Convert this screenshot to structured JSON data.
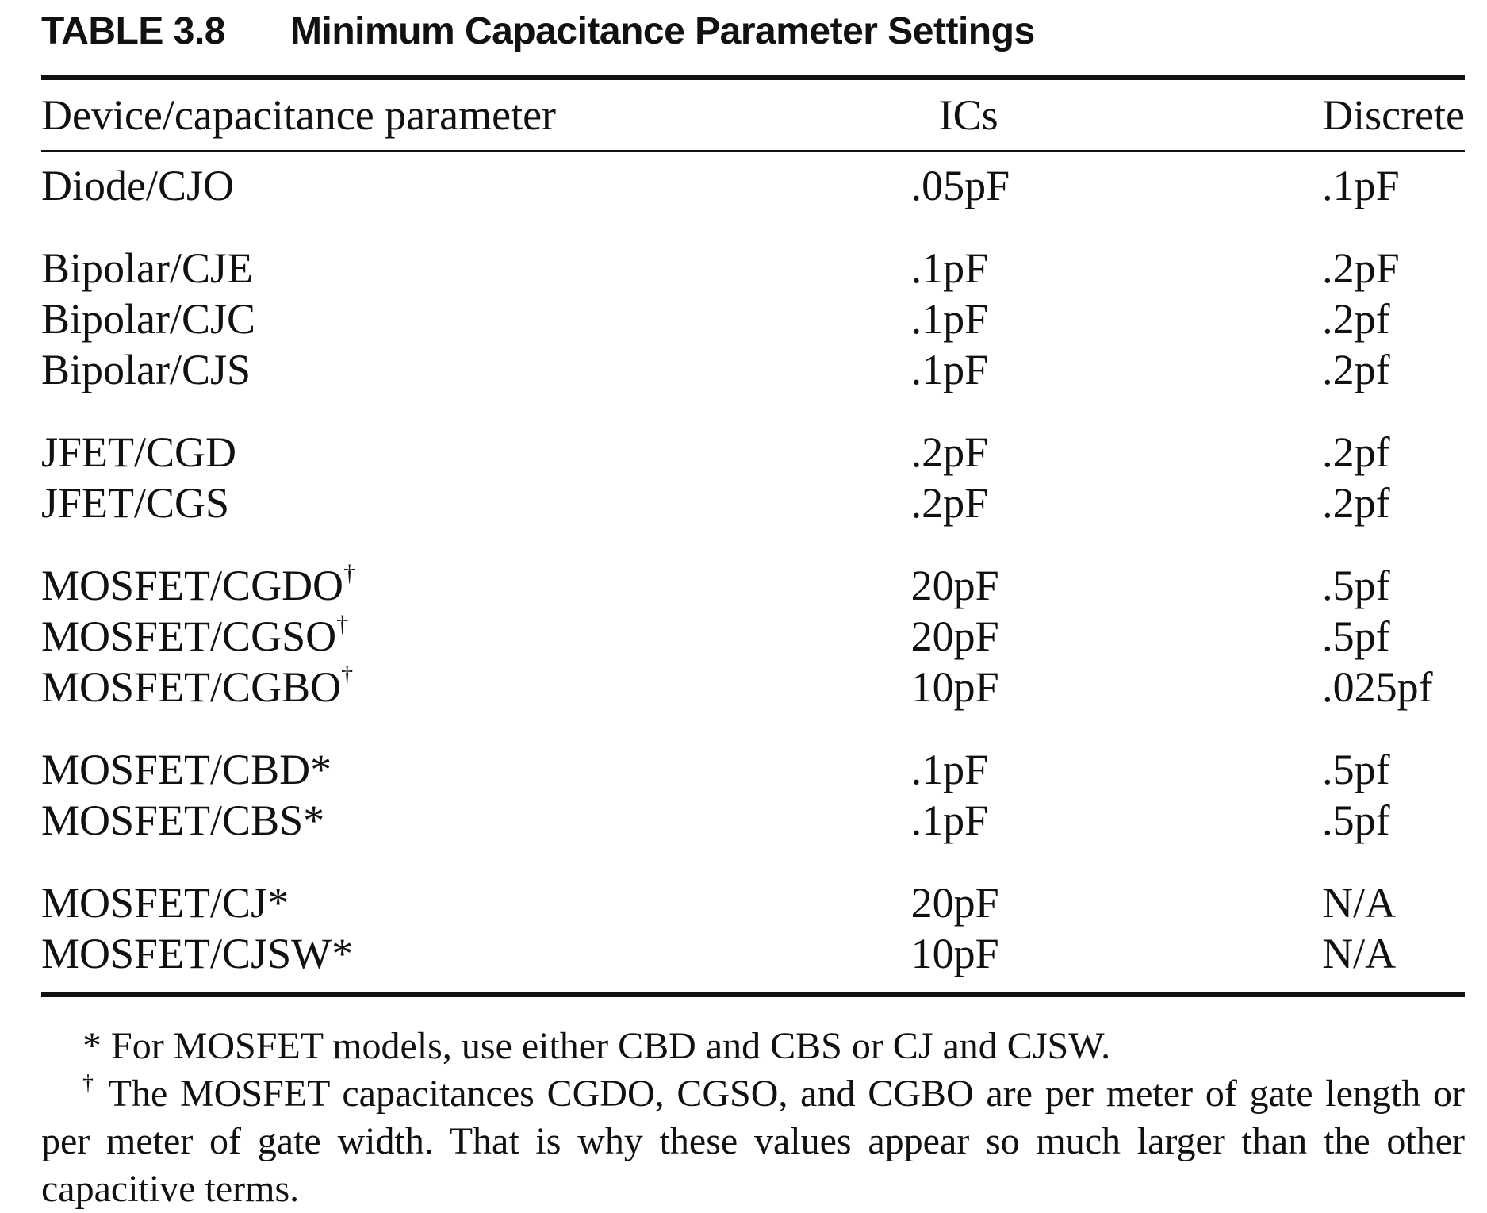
{
  "table": {
    "number": "TABLE 3.8",
    "title": "Minimum Capacitance Parameter Settings",
    "headers": {
      "param": "Device/capacitance parameter",
      "ics": "ICs",
      "discrete": "Discrete"
    },
    "rows": [
      {
        "param": "Diode/CJO",
        "mark": "",
        "ics": ".05pF",
        "discrete": ".1pF"
      },
      {
        "param": "Bipolar/CJE",
        "mark": "",
        "ics": ".1pF",
        "discrete": ".2pF"
      },
      {
        "param": "Bipolar/CJC",
        "mark": "",
        "ics": ".1pF",
        "discrete": ".2pf"
      },
      {
        "param": "Bipolar/CJS",
        "mark": "",
        "ics": ".1pF",
        "discrete": ".2pf"
      },
      {
        "param": "JFET/CGD",
        "mark": "",
        "ics": ".2pF",
        "discrete": ".2pf"
      },
      {
        "param": "JFET/CGS",
        "mark": "",
        "ics": ".2pF",
        "discrete": ".2pf"
      },
      {
        "param": "MOSFET/CGDO",
        "mark": "†",
        "ics": "20pF",
        "discrete": ".5pf"
      },
      {
        "param": "MOSFET/CGSO",
        "mark": "†",
        "ics": "20pF",
        "discrete": ".5pf"
      },
      {
        "param": "MOSFET/CGBO",
        "mark": "†",
        "ics": "10pF",
        "discrete": ".025pf"
      },
      {
        "param": "MOSFET/CBD*",
        "mark": "",
        "ics": ".1pF",
        "discrete": ".5pf"
      },
      {
        "param": "MOSFET/CBS*",
        "mark": "",
        "ics": ".1pF",
        "discrete": ".5pf"
      },
      {
        "param": "MOSFET/CJ*",
        "mark": "",
        "ics": "20pF",
        "discrete": "N/A"
      },
      {
        "param": "MOSFET/CJSW*",
        "mark": "",
        "ics": "10pF",
        "discrete": "N/A"
      }
    ]
  },
  "notes": {
    "note1": "* For MOSFET models, use either CBD and CBS or CJ and CJSW.",
    "note2_mark": "†",
    "note2_text": " The MOSFET capacitances CGDO, CGSO, and CGBO are per meter of gate length or per meter of gate width. That is why these values appear so much larger than the other capacitive terms."
  }
}
